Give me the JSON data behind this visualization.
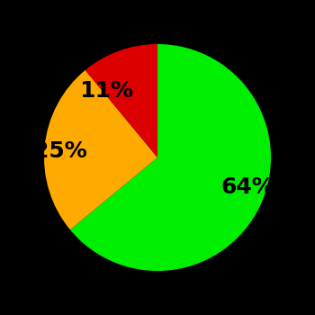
{
  "slices": [
    64,
    25,
    11
  ],
  "colors": [
    "#00ee00",
    "#ffaa00",
    "#dd0000"
  ],
  "labels": [
    "64%",
    "25%",
    "11%"
  ],
  "background_color": "#000000",
  "startangle": 90,
  "figsize": [
    3.5,
    3.5
  ],
  "dpi": 100,
  "label_fontsize": 18,
  "label_fontweight": "bold",
  "label_distance": 0.62
}
